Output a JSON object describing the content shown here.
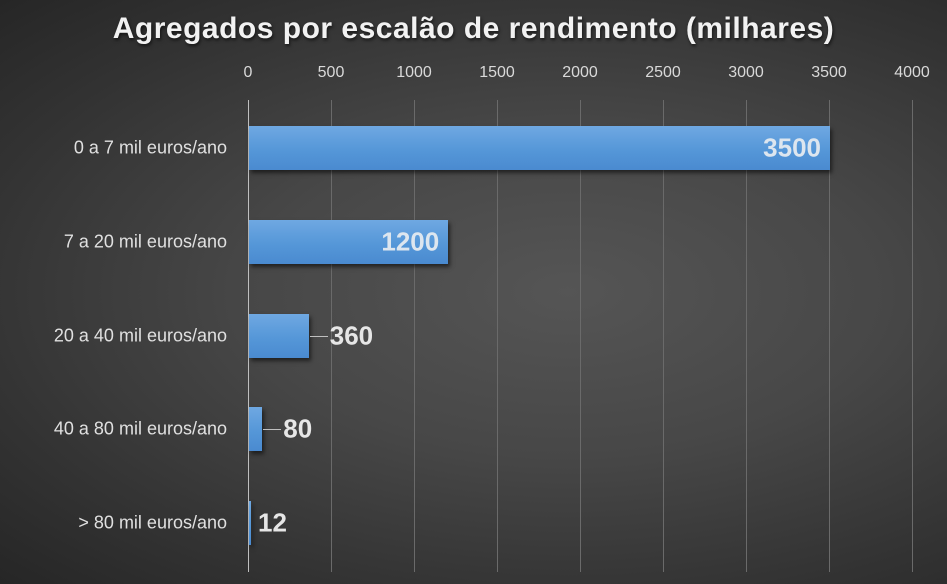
{
  "chart_data": {
    "type": "bar",
    "orientation": "horizontal",
    "title": "Agregados por escalão de rendimento (milhares)",
    "xlabel": "",
    "ylabel": "",
    "categories": [
      "0 a 7 mil euros/ano",
      "7 a 20 mil euros/ano",
      "20 a 40 mil euros/ano",
      "40 a 80 mil euros/ano",
      "> 80 mil euros/ano"
    ],
    "values": [
      3500,
      1200,
      360,
      80,
      12
    ],
    "data_labels": [
      "3500",
      "1200",
      "360",
      "80",
      "12"
    ],
    "xlim": [
      0,
      4000
    ],
    "x_ticks": [
      "0",
      "500",
      "1000",
      "1500",
      "2000",
      "2500",
      "3000",
      "3500",
      "4000"
    ],
    "x_axis_position": "top",
    "grid": true,
    "legend": "none",
    "bar_color": "#5b9bd5",
    "background": "#404040"
  }
}
